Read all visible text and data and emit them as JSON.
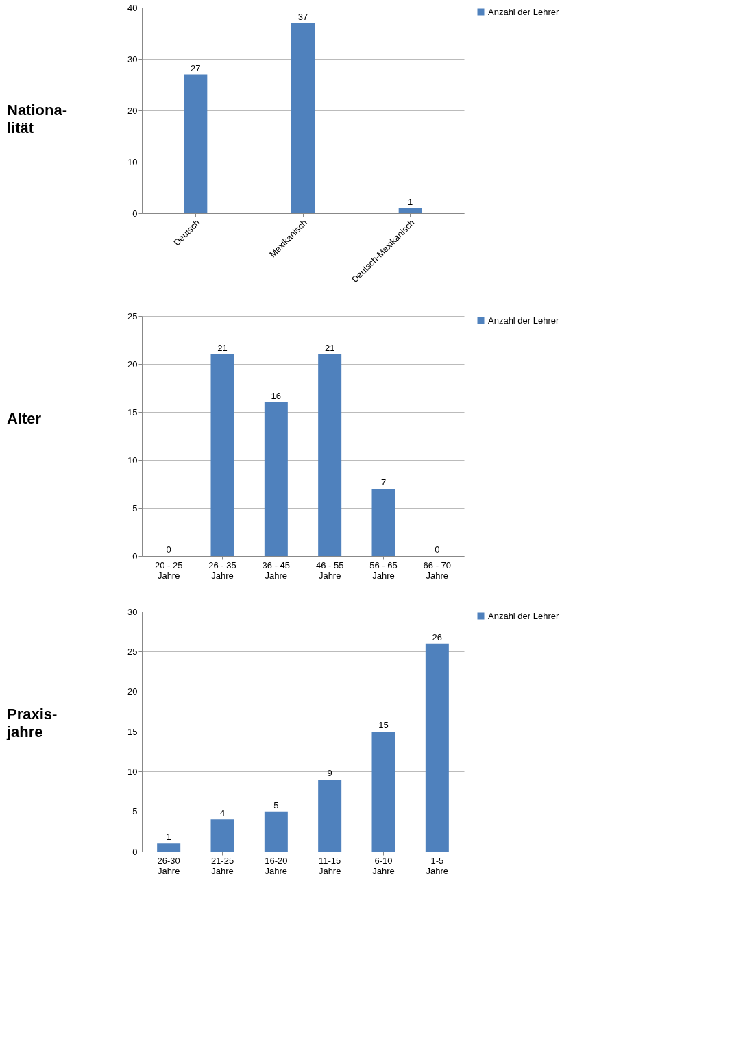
{
  "chart_data": [
    {
      "type": "bar",
      "title": "Nationa-\nlität",
      "categories": [
        "Deutsch",
        "Mexikanisch",
        "Deutsch-Mexikanisch"
      ],
      "series": [
        {
          "name": "Anzahl der Lehrer",
          "color": "#4f81bd",
          "values": [
            27,
            37,
            1
          ]
        }
      ],
      "ylim": [
        0,
        40
      ],
      "yticks": [
        0,
        10,
        20,
        30,
        40
      ],
      "grid": "y",
      "legend": "right",
      "data_labels": true
    },
    {
      "type": "bar",
      "title": "Alter",
      "categories": [
        "20 - 25 Jahre",
        "26 - 35 Jahre",
        "36 - 45 Jahre",
        "46 - 55 Jahre",
        "56 - 65 Jahre",
        "66 - 70 Jahre"
      ],
      "series": [
        {
          "name": "Anzahl der Lehrer",
          "color": "#4f81bd",
          "values": [
            0,
            21,
            16,
            21,
            7,
            0
          ]
        }
      ],
      "ylim": [
        0,
        25
      ],
      "yticks": [
        0,
        5,
        10,
        15,
        20,
        25
      ],
      "grid": "y",
      "legend": "right",
      "data_labels": true
    },
    {
      "type": "bar",
      "title": "Praxis-\njahre",
      "categories": [
        "26-30 Jahre",
        "21-25 Jahre",
        "16-20 Jahre",
        "11-15 Jahre",
        "6-10 Jahre",
        "1-5 Jahre"
      ],
      "series": [
        {
          "name": "Anzahl der Lehrer",
          "color": "#4f81bd",
          "values": [
            1,
            4,
            5,
            9,
            15,
            26
          ]
        }
      ],
      "ylim": [
        0,
        30
      ],
      "yticks": [
        0,
        5,
        10,
        15,
        20,
        25,
        30
      ],
      "grid": "y",
      "legend": "right",
      "data_labels": true
    }
  ]
}
